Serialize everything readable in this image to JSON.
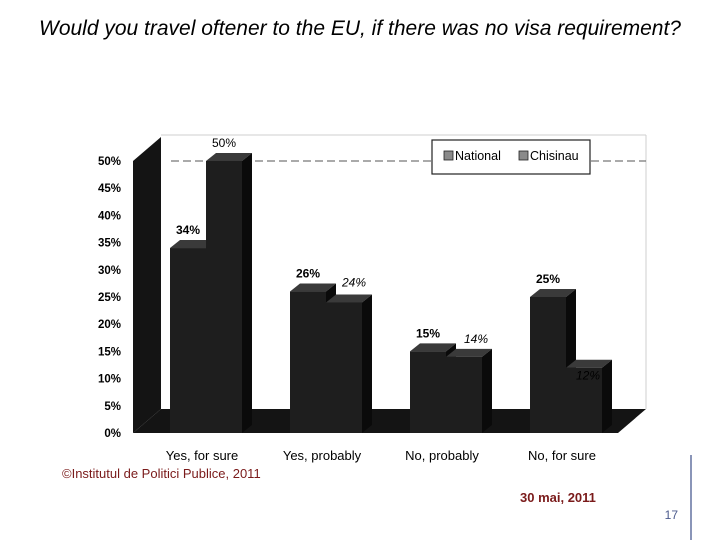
{
  "title": "Would you travel oftener to the EU, if there was no visa requirement?",
  "footer": {
    "copyright": "©Institutul de Politici Publice, 2011",
    "date": "30 mai, 2011",
    "slide_number": "17"
  },
  "chart_data": {
    "type": "bar",
    "categories": [
      "Yes, for sure",
      "Yes, probably",
      "No, probably",
      "No, for sure"
    ],
    "series": [
      {
        "name": "National",
        "values": [
          34,
          26,
          15,
          25
        ],
        "labels": [
          "34%",
          "26%",
          "15%",
          "25%"
        ],
        "color": "#1e1e1e"
      },
      {
        "name": "Chisinau",
        "values": [
          50,
          24,
          14,
          12
        ],
        "labels": [
          "50%",
          "24%",
          "14%",
          "12%"
        ],
        "color": "#1e1e1e"
      }
    ],
    "yticks": [
      "0%",
      "5%",
      "10%",
      "15%",
      "20%",
      "25%",
      "30%",
      "35%",
      "40%",
      "45%",
      "50%"
    ],
    "ylim": [
      0,
      50
    ],
    "grid": false,
    "legend": "top-right"
  },
  "colors": {
    "bar_face": "#1e1e1e",
    "bar_top": "#3a3a3a",
    "bar_side": "#0a0a0a",
    "wall": "#141414",
    "floor": "#141414",
    "label_accent": "#7a1a1a",
    "slide_number": "#4b5a8c"
  }
}
